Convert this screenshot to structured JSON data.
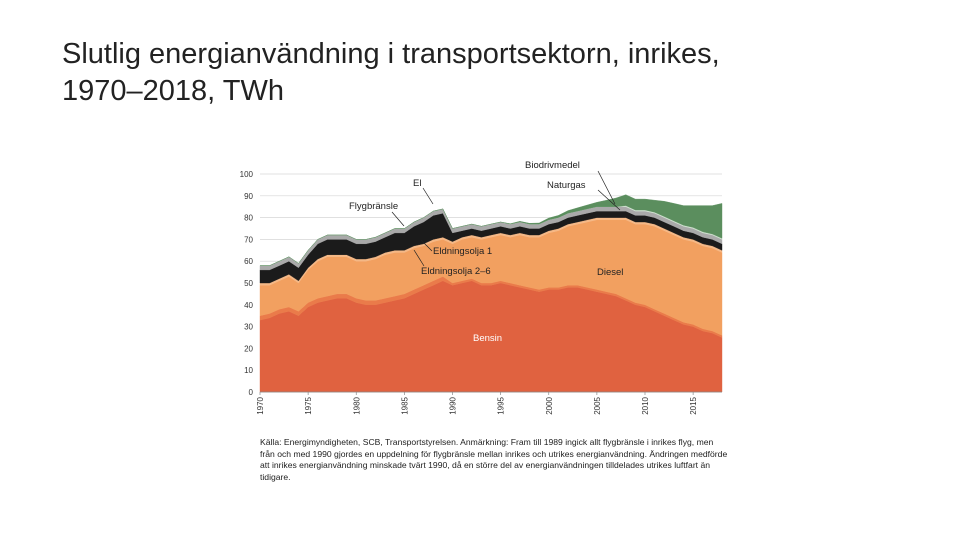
{
  "title_line1": "Slutlig energianvändning i transportsektorn, inrikes,",
  "title_line2": "1970–2018, TWh",
  "source_text": "Källa: Energimyndigheten, SCB, Transportstyrelsen. Anmärkning: Fram till 1989 ingick allt flygbränsle i inrikes flyg, men från och med 1990 gjordes en uppdelning för flygbränsle mellan inrikes och utrikes energianvändning. Ändringen medförde att inrikes energianvändning minskade tvärt 1990, då en större del av energianvändningen tilldelades utrikes luftfart än tidigare.",
  "chart_data": {
    "type": "area",
    "stacked": true,
    "title": "Slutlig energianvändning i transportsektorn, inrikes, 1970–2018, TWh",
    "xlabel": "",
    "ylabel": "TWh",
    "xlim": [
      1970,
      2018
    ],
    "ylim": [
      0,
      100
    ],
    "y_ticks": [
      "0",
      "10",
      "20",
      "30",
      "40",
      "50",
      "60",
      "70",
      "80",
      "90",
      "100"
    ],
    "x_ticks": [
      "1970",
      "1975",
      "1980",
      "1985",
      "1990",
      "1995",
      "2000",
      "2005",
      "2010",
      "2015"
    ],
    "grid": true,
    "years": [
      1970,
      1971,
      1972,
      1973,
      1974,
      1975,
      1976,
      1977,
      1978,
      1979,
      1980,
      1981,
      1982,
      1983,
      1984,
      1985,
      1986,
      1987,
      1988,
      1989,
      1990,
      1991,
      1992,
      1993,
      1994,
      1995,
      1996,
      1997,
      1998,
      1999,
      2000,
      2001,
      2002,
      2003,
      2004,
      2005,
      2006,
      2007,
      2008,
      2009,
      2010,
      2011,
      2012,
      2013,
      2014,
      2015,
      2016,
      2017,
      2018
    ],
    "series": [
      {
        "name": "Bensin",
        "color": "#e06240",
        "values": [
          33,
          34,
          36,
          37,
          35,
          39,
          41,
          42,
          43,
          43,
          41,
          40,
          40,
          41,
          42,
          43,
          45,
          47,
          49,
          51,
          49,
          50,
          51,
          49,
          49,
          50,
          49,
          48,
          47,
          46,
          47,
          47,
          48,
          48,
          47,
          46,
          45,
          44,
          42,
          40,
          39,
          37,
          35,
          33,
          31,
          30,
          28,
          27,
          25
        ]
      },
      {
        "name": "Eldningsolja 2–6",
        "color": "#ea7b4a",
        "values": [
          2,
          2,
          2,
          2,
          2,
          2,
          2,
          2,
          2,
          2,
          2,
          2,
          2,
          2,
          2,
          2,
          2,
          2,
          2,
          2,
          1,
          1,
          1,
          1,
          1,
          1,
          1,
          1,
          1,
          1,
          1,
          1,
          1,
          1,
          1,
          1,
          1,
          1,
          1,
          1,
          1,
          1,
          1,
          1,
          1,
          1,
          1,
          1,
          1
        ]
      },
      {
        "name": "Diesel",
        "color": "#f2a060",
        "values": [
          14,
          13,
          13,
          14,
          13,
          15,
          17,
          18,
          17,
          17,
          17,
          18,
          19,
          20,
          20,
          19,
          19,
          18,
          18,
          17,
          18,
          19,
          19,
          20,
          21,
          21,
          21,
          23,
          23,
          24,
          25,
          26,
          27,
          28,
          30,
          32,
          33,
          34,
          36,
          36,
          37,
          38,
          38,
          38,
          38,
          38,
          38,
          38,
          38
        ]
      },
      {
        "name": "Eldningsolja 1",
        "color": "#f5b886",
        "values": [
          1,
          1,
          1,
          1,
          1,
          1,
          1,
          1,
          1,
          1,
          1,
          1,
          1,
          1,
          1,
          1,
          1,
          1,
          1,
          1,
          1,
          1,
          1,
          1,
          1,
          1,
          1,
          1,
          1,
          1,
          1,
          1,
          1,
          1,
          1,
          1,
          1,
          1,
          1,
          1,
          1,
          1,
          1,
          1,
          1,
          1,
          1,
          1,
          1
        ]
      },
      {
        "name": "Flygbränsle",
        "color": "#1b1b1b",
        "values": [
          6,
          6,
          6,
          6,
          6,
          6,
          7,
          7,
          7,
          7,
          7,
          7,
          7,
          7,
          8,
          8,
          9,
          10,
          11,
          11,
          4,
          3,
          3,
          3,
          3,
          3,
          3,
          3,
          3,
          3,
          3,
          3,
          3,
          3,
          3,
          3,
          3,
          3,
          3,
          3,
          3,
          3,
          3,
          3,
          3,
          3,
          3,
          3,
          3
        ]
      },
      {
        "name": "El",
        "color": "#a9a9a9",
        "values": [
          2,
          2,
          2,
          2,
          2,
          2,
          2,
          2,
          2,
          2,
          2,
          2,
          2,
          2,
          2,
          2,
          2,
          2,
          2,
          2,
          2,
          2,
          2,
          2,
          2,
          2,
          2,
          2,
          2,
          2,
          2,
          2,
          2,
          2,
          2,
          2,
          2,
          2,
          2,
          2,
          2,
          2,
          2,
          2,
          2,
          2,
          2,
          2,
          2
        ]
      },
      {
        "name": "Naturgas",
        "color": "#cfe1cf",
        "values": [
          0,
          0,
          0,
          0,
          0,
          0,
          0,
          0,
          0,
          0,
          0,
          0,
          0,
          0,
          0,
          0,
          0,
          0,
          0,
          0,
          0,
          0,
          0,
          0,
          0,
          0,
          0,
          0,
          0,
          0,
          0,
          0,
          0,
          0,
          0,
          0,
          0,
          0,
          0.5,
          0.5,
          0.5,
          0.5,
          0.5,
          0.5,
          0.5,
          0.5,
          0.5,
          0.5,
          0.5
        ]
      },
      {
        "name": "Biodrivmedel",
        "color": "#5b8e5e",
        "values": [
          0,
          0,
          0,
          0,
          0,
          0,
          0,
          0,
          0,
          0,
          0,
          0,
          0,
          0,
          0,
          0,
          0,
          0,
          0,
          0,
          0,
          0,
          0,
          0,
          0,
          0,
          0.2,
          0.3,
          0.4,
          0.5,
          0.8,
          1,
          1.2,
          1.5,
          1.8,
          2,
          3,
          4,
          5,
          5,
          5,
          5.5,
          7,
          8,
          9,
          10,
          12,
          13,
          16
        ]
      }
    ],
    "annotations": [
      "Biodrivmedel",
      "El",
      "Naturgas",
      "Flygbränsle",
      "Eldningsolja 1",
      "Eldningsolja 2–6",
      "Diesel",
      "Bensin"
    ]
  }
}
